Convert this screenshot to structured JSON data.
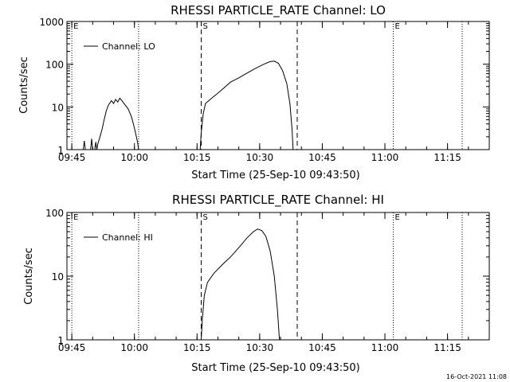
{
  "footer": {
    "date_stamp": "16-Oct-2021 11:08"
  },
  "chart_data": [
    {
      "type": "line",
      "title": "RHESSI PARTICLE_RATE Channel: LO",
      "xlabel": "Start Time (25-Sep-10 09:43:50)",
      "ylabel": "Counts/sec",
      "y_scale": "log",
      "xlim": [
        "09:43:50",
        "11:25:00"
      ],
      "ylim": [
        1,
        1000
      ],
      "x_ticks": [
        "09:45",
        "10:00",
        "10:15",
        "10:30",
        "10:45",
        "11:00",
        "11:15"
      ],
      "y_ticks": [
        "1",
        "10",
        "100",
        "1000"
      ],
      "legend": {
        "position": "top-left"
      },
      "series": [
        {
          "name": "Channel: LO",
          "points": [
            [
              "09:47:45",
              1
            ],
            [
              "09:48:00",
              1.6
            ],
            [
              "09:48:15",
              1
            ],
            [
              "09:49:30",
              1
            ],
            [
              "09:49:45",
              1.8
            ],
            [
              "09:50:00",
              1
            ],
            [
              "09:50:30",
              1
            ],
            [
              "09:50:45",
              1.5
            ],
            [
              "09:51:00",
              1
            ],
            [
              "09:51:15",
              1.4
            ],
            [
              "09:51:45",
              2
            ],
            [
              "09:52:15",
              3
            ],
            [
              "09:52:45",
              5
            ],
            [
              "09:53:15",
              8
            ],
            [
              "09:53:45",
              11
            ],
            [
              "09:54:30",
              14
            ],
            [
              "09:55:00",
              12
            ],
            [
              "09:55:30",
              15
            ],
            [
              "09:56:00",
              13
            ],
            [
              "09:56:30",
              16
            ],
            [
              "09:57:00",
              14
            ],
            [
              "09:57:30",
              12
            ],
            [
              "09:58:30",
              9
            ],
            [
              "09:59:15",
              6
            ],
            [
              "09:59:45",
              4
            ],
            [
              "10:00:15",
              2.5
            ],
            [
              "10:00:45",
              1.5
            ],
            [
              "10:01:00",
              1
            ],
            [
              "10:15:45",
              1
            ],
            [
              "10:16:00",
              2.5
            ],
            [
              "10:16:30",
              7
            ],
            [
              "10:17:00",
              12
            ],
            [
              "10:18:30",
              16
            ],
            [
              "10:20:00",
              21
            ],
            [
              "10:21:30",
              28
            ],
            [
              "10:23:00",
              38
            ],
            [
              "10:25:00",
              48
            ],
            [
              "10:27:00",
              62
            ],
            [
              "10:29:00",
              80
            ],
            [
              "10:31:00",
              100
            ],
            [
              "10:32:30",
              115
            ],
            [
              "10:33:30",
              118
            ],
            [
              "10:34:30",
              105
            ],
            [
              "10:35:30",
              70
            ],
            [
              "10:36:30",
              35
            ],
            [
              "10:37:15",
              12
            ],
            [
              "10:37:45",
              3
            ],
            [
              "10:38:00",
              1
            ]
          ]
        }
      ],
      "markers": [
        {
          "time": "09:45:00",
          "style": "dotted",
          "label": "E"
        },
        {
          "time": "10:01:00",
          "style": "dotted",
          "label": ""
        },
        {
          "time": "10:16:00",
          "style": "dashed",
          "label": "S"
        },
        {
          "time": "10:39:00",
          "style": "dashed",
          "label": ""
        },
        {
          "time": "11:02:00",
          "style": "dotted",
          "label": "E"
        },
        {
          "time": "11:18:30",
          "style": "dotted",
          "label": ""
        }
      ]
    },
    {
      "type": "line",
      "title": "RHESSI PARTICLE_RATE Channel: HI",
      "xlabel": "Start Time (25-Sep-10 09:43:50)",
      "ylabel": "Counts/sec",
      "y_scale": "log",
      "xlim": [
        "09:43:50",
        "11:25:00"
      ],
      "ylim": [
        1,
        100
      ],
      "x_ticks": [
        "09:45",
        "10:00",
        "10:15",
        "10:30",
        "10:45",
        "11:00",
        "11:15"
      ],
      "y_ticks": [
        "1",
        "10",
        "100"
      ],
      "legend": {
        "position": "top-left"
      },
      "series": [
        {
          "name": "Channel: HI",
          "points": [
            [
              "10:16:00",
              1
            ],
            [
              "10:16:15",
              2
            ],
            [
              "10:16:45",
              5
            ],
            [
              "10:17:30",
              8
            ],
            [
              "10:19:00",
              11
            ],
            [
              "10:21:00",
              15
            ],
            [
              "10:23:00",
              20
            ],
            [
              "10:25:00",
              28
            ],
            [
              "10:27:00",
              40
            ],
            [
              "10:28:30",
              50
            ],
            [
              "10:29:30",
              55
            ],
            [
              "10:30:30",
              52
            ],
            [
              "10:31:30",
              42
            ],
            [
              "10:32:30",
              25
            ],
            [
              "10:33:30",
              10
            ],
            [
              "10:34:15",
              3
            ],
            [
              "10:34:45",
              1
            ]
          ]
        }
      ],
      "markers": [
        {
          "time": "09:45:00",
          "style": "dotted",
          "label": "E"
        },
        {
          "time": "10:01:00",
          "style": "dotted",
          "label": ""
        },
        {
          "time": "10:16:00",
          "style": "dashed",
          "label": "S"
        },
        {
          "time": "10:39:00",
          "style": "dashed",
          "label": ""
        },
        {
          "time": "11:02:00",
          "style": "dotted",
          "label": "E"
        },
        {
          "time": "11:18:30",
          "style": "dotted",
          "label": ""
        }
      ]
    }
  ]
}
